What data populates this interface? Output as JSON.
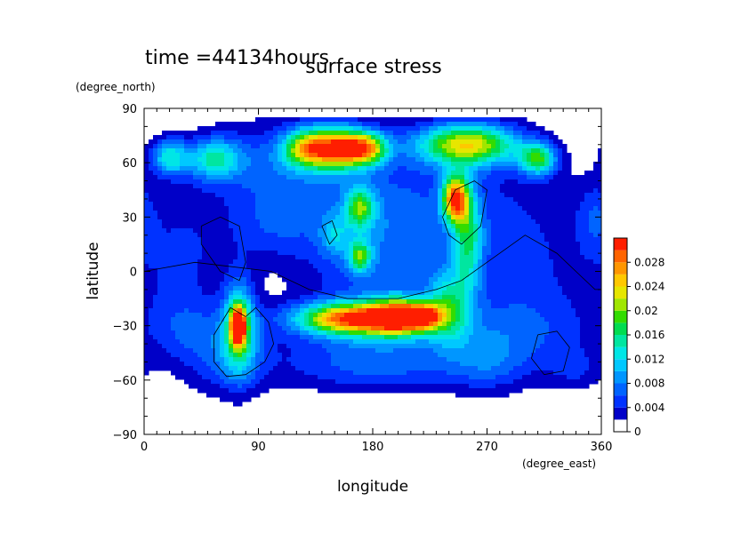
{
  "chart_data": {
    "type": "heatmap",
    "time_label": "time =44134hours",
    "title": "surface stress",
    "xlabel": "longitude",
    "ylabel": "latitude",
    "x_unit": "(degree_east)",
    "y_unit": "(degree_north)",
    "xlim": [
      0,
      360
    ],
    "ylim": [
      -90,
      90
    ],
    "x_ticks": [
      "0",
      "90",
      "180",
      "270",
      "360"
    ],
    "y_ticks": [
      "90",
      "60",
      "30",
      "0",
      "−30",
      "−60",
      "−90"
    ],
    "x_tick_values": [
      0,
      90,
      180,
      270,
      360
    ],
    "y_tick_values": [
      90,
      60,
      30,
      0,
      -30,
      -60,
      -90
    ],
    "colorbar": {
      "levels": [
        0,
        0.002,
        0.004,
        0.006,
        0.008,
        0.01,
        0.012,
        0.014,
        0.016,
        0.018,
        0.02,
        0.022,
        0.024,
        0.026,
        0.028,
        0.03
      ],
      "colors": [
        "#ffffff",
        "#0000c8",
        "#0032ff",
        "#0064ff",
        "#0096ff",
        "#00c8ff",
        "#00e6e6",
        "#00e6a0",
        "#00dc50",
        "#32dc00",
        "#a0e600",
        "#e6e600",
        "#ffc800",
        "#ff9600",
        "#ff6400",
        "#ff1e00"
      ],
      "tick_labels": [
        "0",
        "0.004",
        "0.008",
        "0.012",
        "0.016",
        "0.02",
        "0.024",
        "0.028"
      ],
      "tick_values": [
        0,
        0.004,
        0.008,
        0.012,
        0.016,
        0.02,
        0.024,
        0.028
      ]
    },
    "features": [
      {
        "lon": 20,
        "lat": 63,
        "sx": 10,
        "sy": 7,
        "amp": 0.012
      },
      {
        "lon": 55,
        "lat": 62,
        "sx": 15,
        "sy": 8,
        "amp": 0.012
      },
      {
        "lon": 100,
        "lat": 60,
        "sx": 40,
        "sy": 16,
        "amp": 0.005
      },
      {
        "lon": 150,
        "lat": 68,
        "sx": 18,
        "sy": 8,
        "amp": 0.026
      },
      {
        "lon": 175,
        "lat": 68,
        "sx": 12,
        "sy": 6,
        "amp": 0.018
      },
      {
        "lon": 125,
        "lat": 68,
        "sx": 12,
        "sy": 7,
        "amp": 0.012
      },
      {
        "lon": 255,
        "lat": 70,
        "sx": 28,
        "sy": 8,
        "amp": 0.022
      },
      {
        "lon": 310,
        "lat": 62,
        "sx": 10,
        "sy": 6,
        "amp": 0.016
      },
      {
        "lon": 200,
        "lat": 45,
        "sx": 80,
        "sy": 24,
        "amp": 0.004
      },
      {
        "lon": 245,
        "lat": 40,
        "sx": 7,
        "sy": 9,
        "amp": 0.026
      },
      {
        "lon": 255,
        "lat": 18,
        "sx": 8,
        "sy": 20,
        "amp": 0.012
      },
      {
        "lon": 170,
        "lat": 35,
        "sx": 8,
        "sy": 8,
        "amp": 0.014
      },
      {
        "lon": 170,
        "lat": 8,
        "sx": 6,
        "sy": 6,
        "amp": 0.014
      },
      {
        "lon": 185,
        "lat": 10,
        "sx": 42,
        "sy": 24,
        "amp": 0.006
      },
      {
        "lon": 150,
        "lat": 20,
        "sx": 8,
        "sy": 8,
        "amp": 0.006
      },
      {
        "lon": 30,
        "lat": 10,
        "sx": 25,
        "sy": 22,
        "amp": 0.004
      },
      {
        "lon": 100,
        "lat": 25,
        "sx": 25,
        "sy": 14,
        "amp": 0.004
      },
      {
        "lon": 300,
        "lat": 0,
        "sx": 40,
        "sy": 32,
        "amp": 0.004
      },
      {
        "lon": 355,
        "lat": 30,
        "sx": 10,
        "sy": 14,
        "amp": 0.004
      },
      {
        "lon": 75,
        "lat": -30,
        "sx": 9,
        "sy": 18,
        "amp": 0.014
      },
      {
        "lon": 74,
        "lat": -30,
        "sx": 4,
        "sy": 7,
        "amp": 0.03
      },
      {
        "lon": 65,
        "lat": -45,
        "sx": 24,
        "sy": 16,
        "amp": 0.006
      },
      {
        "lon": 165,
        "lat": -26,
        "sx": 30,
        "sy": 6,
        "amp": 0.026
      },
      {
        "lon": 200,
        "lat": -25,
        "sx": 15,
        "sy": 7,
        "amp": 0.02
      },
      {
        "lon": 220,
        "lat": -25,
        "sx": 10,
        "sy": 5,
        "amp": 0.02
      },
      {
        "lon": 180,
        "lat": -35,
        "sx": 50,
        "sy": 15,
        "amp": 0.006
      },
      {
        "lon": 240,
        "lat": -20,
        "sx": 12,
        "sy": 14,
        "amp": 0.012
      },
      {
        "lon": 185,
        "lat": -55,
        "sx": 60,
        "sy": 9,
        "amp": 0.004
      },
      {
        "lon": 30,
        "lat": -30,
        "sx": 20,
        "sy": 14,
        "amp": 0.004
      },
      {
        "lon": 300,
        "lat": -35,
        "sx": 40,
        "sy": 15,
        "amp": 0.004
      },
      {
        "lon": 270,
        "lat": -50,
        "sx": 20,
        "sy": 12,
        "amp": 0.004
      },
      {
        "lon": 340,
        "lat": -55,
        "sx": 15,
        "sy": 8,
        "amp": 0.003
      }
    ],
    "contour_lines": [
      [
        [
          80,
          -25
        ],
        [
          88,
          -20
        ],
        [
          98,
          -28
        ],
        [
          102,
          -40
        ],
        [
          95,
          -50
        ],
        [
          80,
          -57
        ],
        [
          65,
          -58
        ],
        [
          55,
          -50
        ],
        [
          55,
          -35
        ],
        [
          68,
          -20
        ],
        [
          80,
          -25
        ]
      ],
      [
        [
          310,
          -35
        ],
        [
          325,
          -33
        ],
        [
          335,
          -42
        ],
        [
          330,
          -55
        ],
        [
          315,
          -57
        ],
        [
          305,
          -48
        ],
        [
          310,
          -35
        ]
      ],
      [
        [
          45,
          25
        ],
        [
          60,
          30
        ],
        [
          75,
          25
        ],
        [
          80,
          5
        ],
        [
          75,
          -5
        ],
        [
          60,
          0
        ],
        [
          45,
          15
        ],
        [
          45,
          25
        ]
      ],
      [
        [
          235,
          30
        ],
        [
          245,
          45
        ],
        [
          260,
          50
        ],
        [
          270,
          45
        ],
        [
          265,
          25
        ],
        [
          250,
          15
        ],
        [
          240,
          20
        ],
        [
          235,
          30
        ]
      ],
      [
        [
          0,
          0
        ],
        [
          40,
          5
        ],
        [
          100,
          0
        ],
        [
          130,
          -10
        ],
        [
          160,
          -15
        ],
        [
          200,
          -15
        ],
        [
          230,
          -10
        ],
        [
          250,
          -5
        ],
        [
          280,
          10
        ],
        [
          300,
          20
        ],
        [
          325,
          10
        ],
        [
          340,
          0
        ],
        [
          355,
          -10
        ],
        [
          360,
          -10
        ]
      ],
      [
        [
          140,
          25
        ],
        [
          148,
          28
        ],
        [
          152,
          20
        ],
        [
          146,
          15
        ],
        [
          140,
          25
        ]
      ]
    ]
  }
}
